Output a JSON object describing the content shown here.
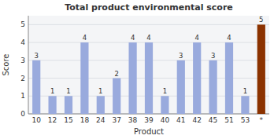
{
  "chart_data": {
    "type": "bar",
    "title": "Total product environmental score",
    "xlabel": "Product",
    "ylabel": "Score",
    "categories": [
      "10",
      "12",
      "15",
      "18",
      "24",
      "37",
      "38",
      "39",
      "40",
      "41",
      "42",
      "45",
      "51",
      "53",
      "*"
    ],
    "values": [
      3,
      1,
      1,
      4,
      1,
      2,
      4,
      4,
      1,
      3,
      4,
      3,
      4,
      1,
      5
    ],
    "colors": [
      "#99AADD",
      "#99AADD",
      "#99AADD",
      "#99AADD",
      "#99AADD",
      "#99AADD",
      "#99AADD",
      "#99AADD",
      "#99AADD",
      "#99AADD",
      "#99AADD",
      "#99AADD",
      "#99AADD",
      "#99AADD",
      "#8B3200"
    ],
    "ylim": [
      0,
      5.5
    ],
    "yticks": [
      0,
      1,
      2,
      3,
      4,
      5
    ],
    "grid": true,
    "data_labels": true
  }
}
